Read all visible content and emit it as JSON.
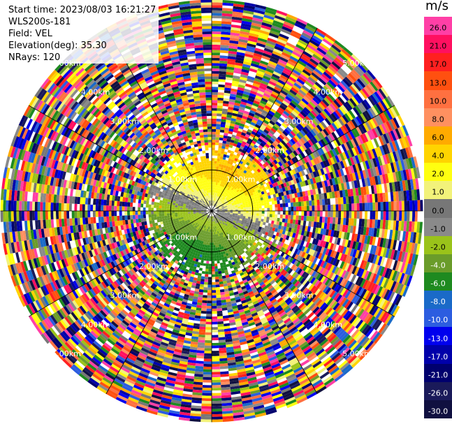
{
  "header": {
    "start_time": "Start time: 2023/08/03 16:21:27",
    "instrument": "WLS200s-181",
    "field": "Field: VEL",
    "elevation": "Elevation(deg): 35.30",
    "nrays": "NRays: 120"
  },
  "colorbar": {
    "unit": "m/s",
    "entries": [
      {
        "label": "26.0",
        "color": "#ff3fa6"
      },
      {
        "label": "21.0",
        "color": "#ff1060"
      },
      {
        "label": "17.0",
        "color": "#ff2020"
      },
      {
        "label": "13.0",
        "color": "#ff5010"
      },
      {
        "label": "10.0",
        "color": "#ff7040"
      },
      {
        "label": "8.0",
        "color": "#ff9060"
      },
      {
        "label": "6.0",
        "color": "#ffaa00"
      },
      {
        "label": "4.0",
        "color": "#ffd400"
      },
      {
        "label": "2.0",
        "color": "#ffff10"
      },
      {
        "label": "1.0",
        "color": "#f2f27a"
      },
      {
        "label": "0.0",
        "color": "#777777"
      },
      {
        "label": "-1.0",
        "color": "#8a8a8a"
      },
      {
        "label": "-2.0",
        "color": "#9ac31a"
      },
      {
        "label": "-4.0",
        "color": "#6a9c2a"
      },
      {
        "label": "-6.0",
        "color": "#1e8a20"
      },
      {
        "label": "-8.0",
        "color": "#1a6ac8"
      },
      {
        "label": "-10.0",
        "color": "#2c5de0"
      },
      {
        "label": "-13.0",
        "color": "#0000ee"
      },
      {
        "label": "-17.0",
        "color": "#0000aa"
      },
      {
        "label": "-21.0",
        "color": "#00006e"
      },
      {
        "label": "-26.0",
        "color": "#1a1a5a"
      },
      {
        "label": "-30.0",
        "color": "#101040"
      }
    ]
  },
  "range_ring_labels": [
    "1.00km",
    "2.00km",
    "3.00km",
    "4.00km",
    "5.00km",
    "6.00km"
  ],
  "scan": {
    "rays": 120,
    "max_range_km": 7.2
  }
}
